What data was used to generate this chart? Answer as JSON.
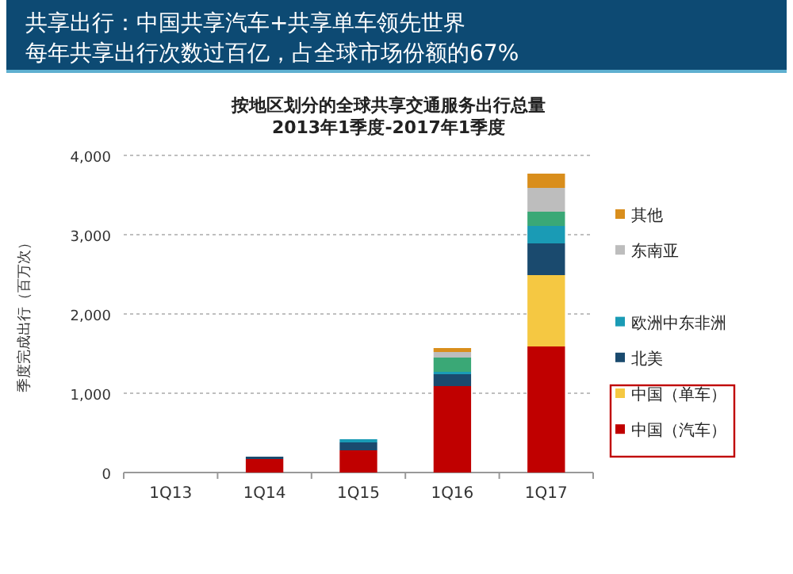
{
  "chart_data": {
    "type": "bar",
    "stacked": true,
    "title": "共享出行：中国共享汽车+共享单车领先世界",
    "subtitle": "每年共享出行次数过百亿，占全球市场份额的67%",
    "annotations": [
      "按地区划分的全球共享交通服务出行总量",
      "2013年1季度-2017年1季度"
    ],
    "ylabel": "季度完成出行（百万次）",
    "categories": [
      "1Q13",
      "1Q14",
      "1Q15",
      "1Q16",
      "1Q17"
    ],
    "series": [
      {
        "name": "中国（汽车）",
        "color": "#c00000",
        "values": [
          0,
          170,
          280,
          1090,
          1590
        ]
      },
      {
        "name": "中国（单车）",
        "color": "#f5c842",
        "values": [
          0,
          0,
          0,
          0,
          900
        ]
      },
      {
        "name": "北美",
        "color": "#1a4a6e",
        "values": [
          0,
          30,
          100,
          150,
          400
        ]
      },
      {
        "name": "欧洲中东非洲",
        "color": "#1a9bb5",
        "values": [
          0,
          0,
          40,
          30,
          220
        ]
      },
      {
        "color": "#3aa876",
        "values": [
          0,
          0,
          0,
          180,
          180
        ]
      },
      {
        "name": "东南亚",
        "color": "#bdbdbd",
        "values": [
          0,
          0,
          0,
          70,
          300
        ]
      },
      {
        "name": "其他",
        "color": "#d98e1c",
        "values": [
          0,
          0,
          0,
          50,
          180
        ]
      }
    ],
    "ylim": [
      0,
      4000
    ],
    "yticks": [
      {
        "value": 0,
        "label": "0"
      },
      {
        "value": 1000,
        "label": "1,000"
      },
      {
        "value": 2000,
        "label": "2,000"
      },
      {
        "value": 3000,
        "label": "3,000"
      },
      {
        "value": 4000,
        "label": "4,000"
      }
    ],
    "grid": "y",
    "legend": "right"
  }
}
